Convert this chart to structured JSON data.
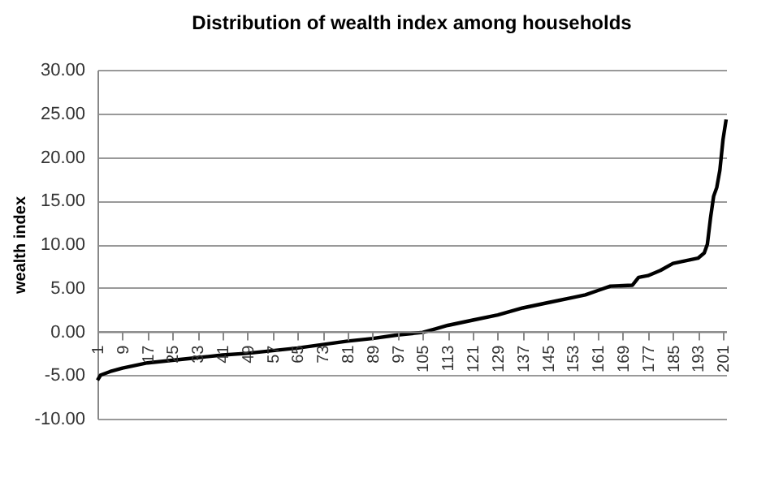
{
  "chart_data": {
    "type": "line",
    "title": "Distribution of wealth index among households",
    "ylabel": "wealth index",
    "x": [
      1,
      2,
      5,
      9,
      13,
      17,
      25,
      33,
      41,
      49,
      57,
      65,
      73,
      81,
      89,
      97,
      105,
      109,
      113,
      121,
      129,
      137,
      145,
      153,
      157,
      161,
      165,
      172,
      174,
      177,
      181,
      185,
      189,
      193,
      195,
      196,
      197,
      198,
      199,
      200,
      201,
      202
    ],
    "series": [
      {
        "color": "#000000",
        "values": [
          -5.6,
          -5.0,
          -4.6,
          -4.2,
          -3.9,
          -3.6,
          -3.3,
          -3.0,
          -2.7,
          -2.5,
          -2.2,
          -1.9,
          -1.5,
          -1.1,
          -0.8,
          -0.4,
          -0.1,
          0.3,
          0.7,
          1.3,
          1.9,
          2.7,
          3.3,
          3.9,
          4.2,
          4.7,
          5.2,
          5.3,
          6.2,
          6.4,
          7.0,
          7.8,
          8.1,
          8.4,
          9.0,
          10.0,
          13.0,
          15.5,
          16.5,
          18.5,
          22.0,
          24.3
        ]
      }
    ],
    "xlim": [
      1,
      202
    ],
    "xticks": [
      1,
      9,
      17,
      25,
      33,
      41,
      49,
      57,
      65,
      73,
      81,
      89,
      97,
      105,
      113,
      121,
      129,
      137,
      145,
      153,
      161,
      169,
      177,
      185,
      193,
      201
    ],
    "ylim": [
      -10,
      30
    ],
    "yticks": [
      {
        "value": -10,
        "label": "-10.00"
      },
      {
        "value": -5,
        "label": "-5.00"
      },
      {
        "value": 0,
        "label": "0.00"
      },
      {
        "value": 5,
        "label": "5.00"
      },
      {
        "value": 10,
        "label": "10.00"
      },
      {
        "value": 15,
        "label": "15.00"
      },
      {
        "value": 20,
        "label": "20.00"
      },
      {
        "value": 25,
        "label": "25.00"
      },
      {
        "value": 30,
        "label": "30.00"
      }
    ],
    "grid": "y",
    "marker": "none",
    "line_style": "solid"
  }
}
